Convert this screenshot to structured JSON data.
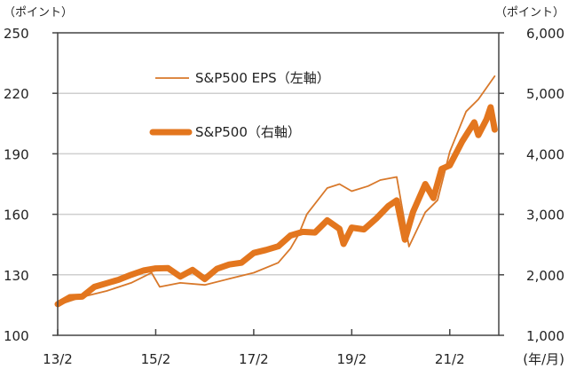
{
  "chart_data": {
    "type": "line",
    "left_axis_unit": "（ポイント）",
    "right_axis_unit": "（ポイント）",
    "x_unit": "(年/月)",
    "left_ylim": [
      100,
      250
    ],
    "left_ticks": [
      "100",
      "130",
      "160",
      "190",
      "220",
      "250"
    ],
    "right_ylim": [
      1000,
      6000
    ],
    "right_ticks": [
      "1,000",
      "2,000",
      "3,000",
      "4,000",
      "5,000",
      "6,000"
    ],
    "x_range": [
      "2013/2",
      "2022/2"
    ],
    "x_ticks": [
      {
        "date": "2013/2",
        "label": "13/2"
      },
      {
        "date": "2015/2",
        "label": "15/2"
      },
      {
        "date": "2017/2",
        "label": "17/2"
      },
      {
        "date": "2019/2",
        "label": "19/2"
      },
      {
        "date": "2021/2",
        "label": "21/2"
      }
    ],
    "grid": "horizontal",
    "legend_placement": "top-left inside",
    "color": "#E3761E",
    "series": [
      {
        "name": "S&P500 EPS（左軸）",
        "axis": "left",
        "style": "thin",
        "points": [
          [
            "2013/2",
            115
          ],
          [
            "2013/8",
            119
          ],
          [
            "2014/2",
            122
          ],
          [
            "2014/8",
            126
          ],
          [
            "2015/1",
            131
          ],
          [
            "2015/3",
            124
          ],
          [
            "2015/8",
            126
          ],
          [
            "2016/2",
            125
          ],
          [
            "2016/8",
            128
          ],
          [
            "2017/2",
            131
          ],
          [
            "2017/8",
            136
          ],
          [
            "2017/11",
            143
          ],
          [
            "2018/1",
            150
          ],
          [
            "2018/3",
            160
          ],
          [
            "2018/8",
            173
          ],
          [
            "2018/11",
            175
          ],
          [
            "2019/2",
            171.5
          ],
          [
            "2019/6",
            174
          ],
          [
            "2019/9",
            177
          ],
          [
            "2020/1",
            178.5
          ],
          [
            "2020/4",
            144
          ],
          [
            "2020/8",
            161
          ],
          [
            "2020/11",
            167
          ],
          [
            "2021/2",
            191
          ],
          [
            "2021/6",
            211
          ],
          [
            "2021/9",
            217
          ],
          [
            "2022/1",
            228.5
          ]
        ]
      },
      {
        "name": "S&P500（右軸）",
        "axis": "right",
        "style": "thick",
        "points": [
          [
            "2013/2",
            1515
          ],
          [
            "2013/5",
            1630
          ],
          [
            "2013/8",
            1640
          ],
          [
            "2013/11",
            1800
          ],
          [
            "2014/2",
            1860
          ],
          [
            "2014/5",
            1920
          ],
          [
            "2014/8",
            2000
          ],
          [
            "2014/11",
            2070
          ],
          [
            "2015/2",
            2105
          ],
          [
            "2015/5",
            2110
          ],
          [
            "2015/8",
            1970
          ],
          [
            "2015/11",
            2080
          ],
          [
            "2016/2",
            1930
          ],
          [
            "2016/5",
            2100
          ],
          [
            "2016/8",
            2170
          ],
          [
            "2016/11",
            2200
          ],
          [
            "2017/2",
            2360
          ],
          [
            "2017/5",
            2410
          ],
          [
            "2017/8",
            2470
          ],
          [
            "2017/11",
            2650
          ],
          [
            "2018/2",
            2710
          ],
          [
            "2018/5",
            2700
          ],
          [
            "2018/8",
            2900
          ],
          [
            "2018/11",
            2760
          ],
          [
            "2018/12",
            2510
          ],
          [
            "2019/2",
            2780
          ],
          [
            "2019/5",
            2750
          ],
          [
            "2019/8",
            2930
          ],
          [
            "2019/11",
            3140
          ],
          [
            "2020/1",
            3230
          ],
          [
            "2020/3",
            2580
          ],
          [
            "2020/5",
            3040
          ],
          [
            "2020/8",
            3500
          ],
          [
            "2020/10",
            3270
          ],
          [
            "2020/12",
            3750
          ],
          [
            "2021/2",
            3810
          ],
          [
            "2021/5",
            4200
          ],
          [
            "2021/8",
            4520
          ],
          [
            "2021/9",
            4310
          ],
          [
            "2021/11",
            4570
          ],
          [
            "2021/12",
            4770
          ],
          [
            "2022/1",
            4400
          ]
        ]
      }
    ]
  }
}
